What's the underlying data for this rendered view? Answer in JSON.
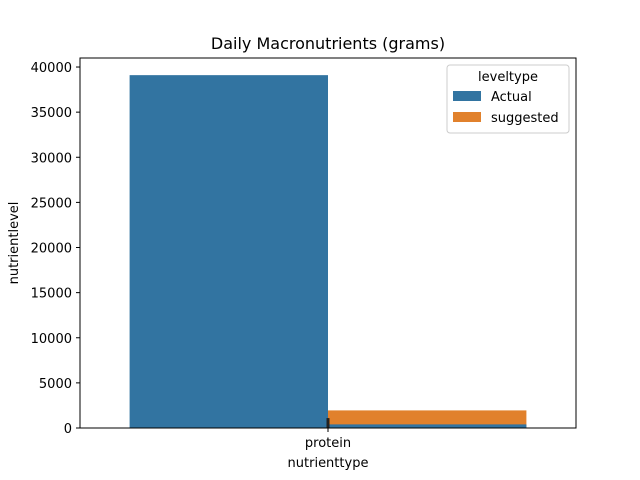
{
  "chart_data": {
    "type": "bar",
    "title": "Daily Macronutrients (grams)",
    "xlabel": "nutrienttype",
    "ylabel": "nutrientlevel",
    "categories": [
      "protein"
    ],
    "series": [
      {
        "name": "Actual",
        "color": "#3274a1",
        "values": [
          39100
        ]
      },
      {
        "name": "suggested",
        "color": "#e1812c",
        "values": [
          1950
        ]
      }
    ],
    "overlay_bars": [
      {
        "series": "Actual",
        "position": "right",
        "value": 400
      }
    ],
    "ylim": [
      0,
      41000
    ],
    "yticks": [
      0,
      5000,
      10000,
      15000,
      20000,
      25000,
      30000,
      35000,
      40000
    ],
    "legend": {
      "title": "leveltype",
      "placement": "top-right"
    },
    "grid": false
  }
}
